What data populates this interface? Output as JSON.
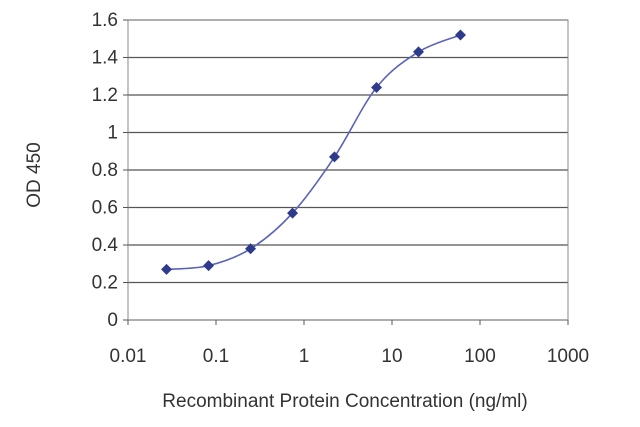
{
  "chart_data": {
    "type": "line",
    "title": "",
    "xlabel": "Recombinant Protein Concentration (ng/ml)",
    "ylabel": "OD 450",
    "x_scale": "log",
    "xlim": [
      0.01,
      1000
    ],
    "ylim": [
      0,
      1.6
    ],
    "x_ticks": [
      "0.01",
      "0.1",
      "1",
      "10",
      "100",
      "1000"
    ],
    "y_ticks": [
      "0",
      "0.2",
      "0.4",
      "0.6",
      "0.8",
      "1",
      "1.2",
      "1.4",
      "1.6"
    ],
    "grid": "horizontal",
    "legend": "none",
    "series": [
      {
        "color": "#2e3a8c",
        "marker": "diamond",
        "x": [
          0.0274,
          0.0823,
          0.247,
          0.741,
          2.22,
          6.67,
          20,
          60
        ],
        "y": [
          0.27,
          0.29,
          0.38,
          0.57,
          0.87,
          1.24,
          1.43,
          1.52
        ]
      }
    ]
  }
}
